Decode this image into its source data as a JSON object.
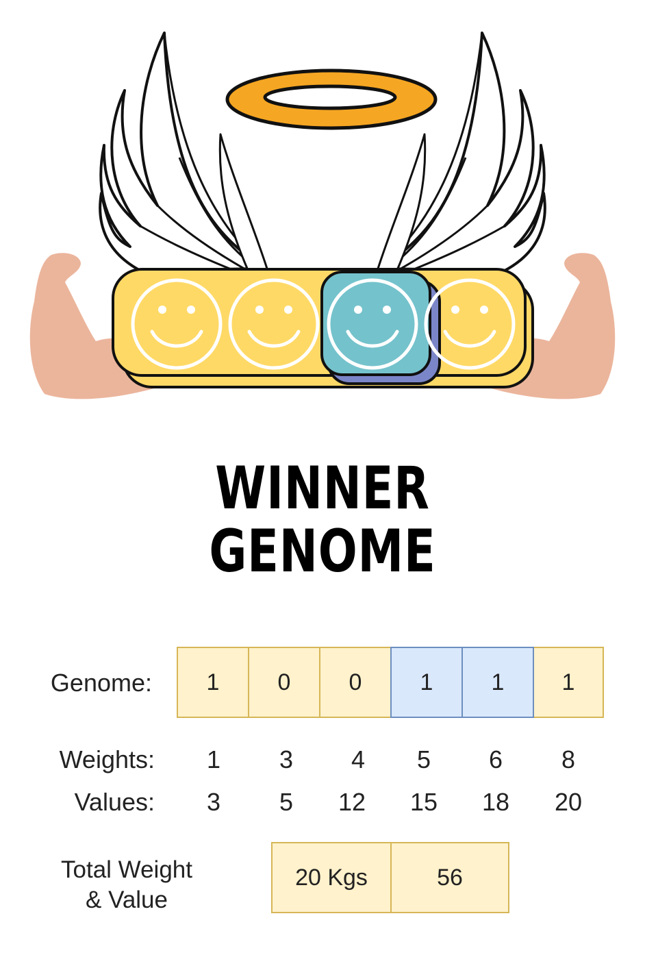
{
  "title": {
    "line1": "WINNER",
    "line2": "GENOME"
  },
  "illustration": {
    "icons": [
      "halo-icon",
      "left-wing-icon",
      "right-wing-icon",
      "left-arm-icon",
      "right-arm-icon",
      "smiley-face-icon"
    ],
    "colors": {
      "halo": "#f5a623",
      "bar": "#ffd966",
      "highlight": "#74c2cc",
      "highlight_shadow": "#7b86c9",
      "skin": "#ebb59c"
    }
  },
  "genome": {
    "label": "Genome:",
    "cells": [
      {
        "value": "1",
        "style": "yellow"
      },
      {
        "value": "0",
        "style": "yellow"
      },
      {
        "value": "0",
        "style": "yellow"
      },
      {
        "value": "1",
        "style": "blue"
      },
      {
        "value": "1",
        "style": "blue"
      },
      {
        "value": "1",
        "style": "yellow"
      }
    ]
  },
  "weights": {
    "label": "Weights:",
    "values": [
      "1",
      "3",
      "4",
      "5",
      "6",
      "8"
    ]
  },
  "values": {
    "label": "Values:",
    "values": [
      "3",
      "5",
      "12",
      "15",
      "18",
      "20"
    ]
  },
  "totals": {
    "label_line1": "Total Weight",
    "label_line2": "& Value",
    "weight": "20 Kgs",
    "value": "56"
  },
  "colors": {
    "yellow_fill": "#fff2cc",
    "yellow_border": "#d6b656",
    "blue_fill": "#dae8fc",
    "blue_border": "#6c8ebf"
  }
}
